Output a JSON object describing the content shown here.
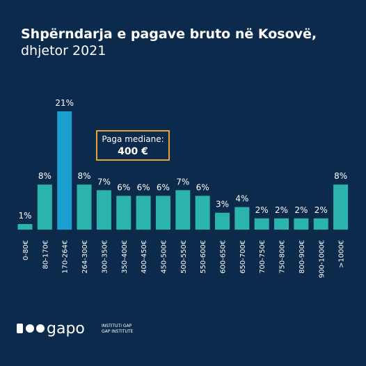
{
  "chart_data": {
    "type": "bar",
    "title": "Shpërndarja e pagave bruto në Kosovë,",
    "subtitle": "dhjetor 2021",
    "categories": [
      "0-80€",
      "80-170€",
      "170-264€",
      "264-300€",
      "300-350€",
      "350-400€",
      "400-450€",
      "450-500€",
      "500-550€",
      "550-600€",
      "600-650€",
      "650-700€",
      "700-750€",
      "750-800€",
      "800-900€",
      "900-1000€",
      ">1000€"
    ],
    "values": [
      1,
      8,
      21,
      8,
      7,
      6,
      6,
      6,
      7,
      6,
      3,
      4,
      2,
      2,
      2,
      2,
      8
    ],
    "value_labels": [
      "1%",
      "8%",
      "21%",
      "8%",
      "7%",
      "6%",
      "6%",
      "6%",
      "7%",
      "6%",
      "3%",
      "4%",
      "2%",
      "2%",
      "2%",
      "2%",
      "8%"
    ],
    "colors": [
      "#2bb3ad",
      "#2bb3ad",
      "#1b9fcf",
      "#2bb3ad",
      "#2bb3ad",
      "#2bb3ad",
      "#2bb3ad",
      "#2bb3ad",
      "#2bb3ad",
      "#2bb3ad",
      "#2bb3ad",
      "#2bb3ad",
      "#2bb3ad",
      "#2bb3ad",
      "#2bb3ad",
      "#2bb3ad",
      "#2bb3ad"
    ],
    "annotation": {
      "label": "Paga mediane:",
      "value": "400 €"
    }
  },
  "logo": {
    "name": "gapo",
    "lines": [
      "INSTITUTI GAP",
      "GAP INSTITUTE"
    ]
  }
}
